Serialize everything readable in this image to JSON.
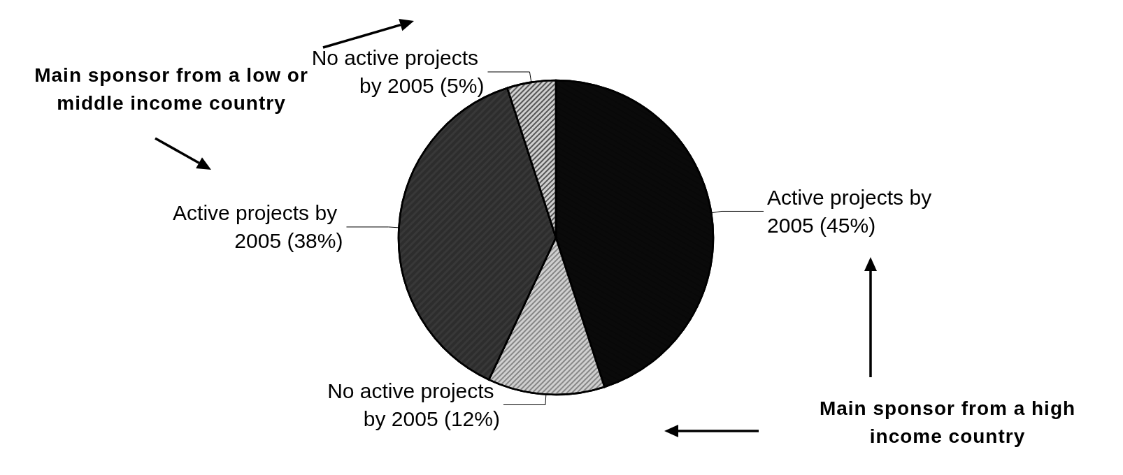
{
  "chart_data": {
    "type": "pie",
    "categories": [
      "Active projects by 2005 (45%)",
      "No active projects by 2005 (12%)",
      "Active projects by 2005 (38%)",
      "No active projects by 2005 (5%)"
    ],
    "values": [
      45,
      12,
      38,
      5
    ],
    "colors": [
      "#0a0a0a",
      "#d0d0d0",
      "#383838",
      "#d0d0d0"
    ],
    "annotations": [
      "Main sponsor from a low or middle income country",
      "Main sponsor from a high income country"
    ]
  }
}
